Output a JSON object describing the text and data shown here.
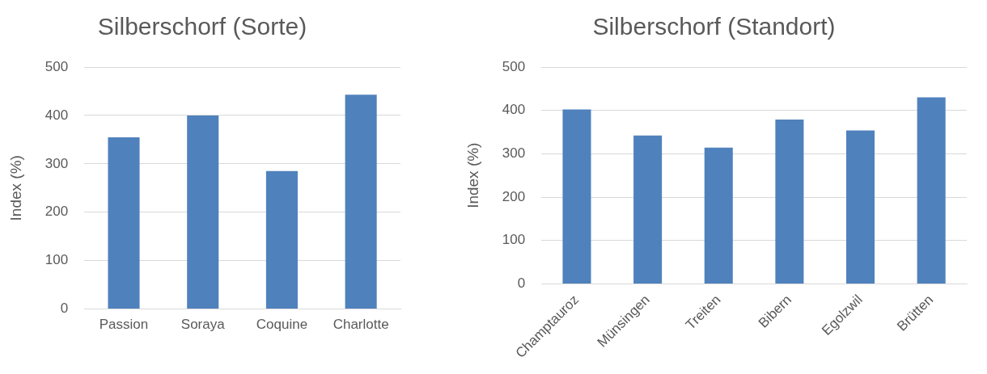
{
  "chart_data": [
    {
      "type": "bar",
      "title": "Silberschorf (Sorte)",
      "ylabel": "Index (%)",
      "categories": [
        "Passion",
        "Soraya",
        "Coquine",
        "Charlotte"
      ],
      "values": [
        355,
        400,
        285,
        443
      ],
      "color": "#4f81bd",
      "ylim": [
        0,
        500
      ],
      "yticks": [
        0,
        100,
        200,
        300,
        400,
        500
      ],
      "grid": "y"
    },
    {
      "type": "bar",
      "title": "Silberschorf (Standort)",
      "ylabel": "Index (%)",
      "categories": [
        "Champtauroz",
        "Münsingen",
        "Treiten",
        "Bibern",
        "Egolzwil",
        "Brütten"
      ],
      "values": [
        402,
        342,
        314,
        379,
        354,
        430
      ],
      "color": "#4f81bd",
      "ylim": [
        0,
        500
      ],
      "yticks": [
        0,
        100,
        200,
        300,
        400,
        500
      ],
      "grid": "y"
    }
  ]
}
